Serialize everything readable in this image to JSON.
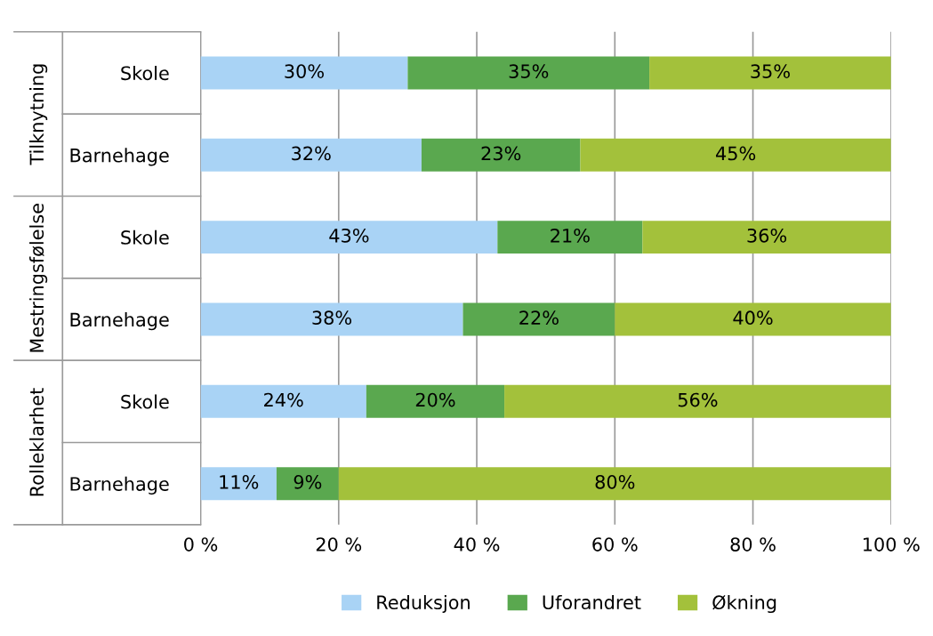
{
  "chart_data": {
    "type": "bar",
    "orientation": "horizontal",
    "stacked": true,
    "categories": [
      "Skole",
      "Barnehage",
      "Skole",
      "Barnehage",
      "Skole",
      "Barnehage"
    ],
    "annotations": [
      "Tilknytning",
      "Mestringsfølelse",
      "Rolleklarhet"
    ],
    "series": [
      {
        "name": "Reduksjon",
        "color": "#a9d3f5",
        "values": [
          30,
          32,
          43,
          38,
          24,
          11
        ],
        "value_labels": [
          "30%",
          "32%",
          "43%",
          "38%",
          "24%",
          "11%"
        ]
      },
      {
        "name": "Uforandret",
        "color": "#5aa84f",
        "values": [
          35,
          23,
          21,
          22,
          20,
          9
        ],
        "value_labels": [
          "35%",
          "23%",
          "21%",
          "22%",
          "20%",
          "9%"
        ]
      },
      {
        "name": "Økning",
        "color": "#a3c13b",
        "values": [
          35,
          45,
          36,
          40,
          56,
          80
        ],
        "value_labels": [
          "35%",
          "45%",
          "36%",
          "40%",
          "56%",
          "80%"
        ]
      }
    ],
    "xlim": [
      0,
      100
    ],
    "xticks": [
      {
        "value": 0,
        "label": "0 %"
      },
      {
        "value": 20,
        "label": "20 %"
      },
      {
        "value": 40,
        "label": "40 %"
      },
      {
        "value": 60,
        "label": "60 %"
      },
      {
        "value": 80,
        "label": "80 %"
      },
      {
        "value": 100,
        "label": "100 %"
      }
    ],
    "grid": "x",
    "legend": "bottom"
  }
}
